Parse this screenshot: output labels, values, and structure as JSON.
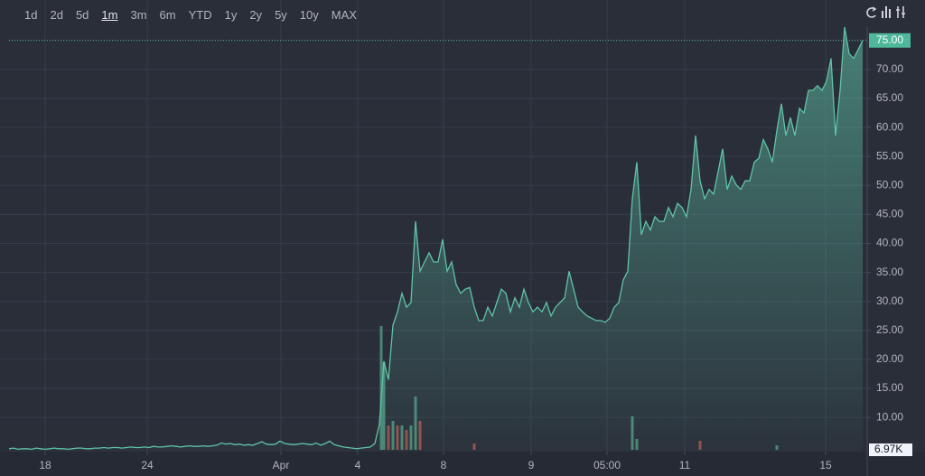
{
  "toolbar": {
    "ranges": [
      "1d",
      "2d",
      "5d",
      "1m",
      "3m",
      "6m",
      "YTD",
      "1y",
      "2y",
      "5y",
      "10y",
      "MAX"
    ],
    "selected": "1m"
  },
  "chart_data": {
    "type": "area",
    "color": "#5fc4a6",
    "grid": true,
    "values": [
      4.6,
      4.7,
      4.5,
      4.6,
      4.6,
      4.5,
      4.7,
      4.6,
      4.5,
      4.6,
      4.7,
      4.6,
      4.6,
      4.5,
      4.6,
      4.7,
      4.7,
      4.6,
      4.6,
      4.7,
      4.7,
      4.8,
      4.7,
      4.8,
      4.8,
      4.7,
      4.8,
      4.9,
      4.8,
      4.8,
      4.9,
      4.8,
      5.0,
      4.9,
      4.9,
      5.0,
      5.1,
      5.0,
      4.9,
      5.0,
      5.1,
      5.0,
      5.0,
      5.1,
      5.0,
      5.1,
      5.2,
      5.6,
      5.4,
      5.5,
      5.3,
      5.4,
      5.2,
      5.3,
      5.2,
      5.5,
      5.8,
      5.4,
      5.3,
      5.4,
      5.9,
      5.5,
      5.4,
      5.3,
      5.4,
      5.5,
      5.4,
      5.3,
      5.6,
      5.2,
      5.5,
      5.9,
      5.3,
      5.1,
      4.9,
      4.8,
      4.7,
      4.6,
      4.7,
      4.8,
      4.9,
      5.5,
      8.8,
      19.7,
      16.5,
      25.9,
      28.2,
      31.4,
      29.0,
      29.8,
      43.8,
      35.2,
      36.8,
      38.4,
      36.8,
      36.8,
      40.7,
      35.2,
      36.8,
      32.9,
      31.4,
      32.1,
      32.4,
      29.0,
      26.7,
      26.7,
      29.0,
      27.5,
      29.8,
      32.1,
      31.4,
      28.2,
      30.6,
      29.0,
      32.1,
      29.8,
      28.2,
      29.0,
      28.2,
      29.8,
      27.5,
      29.0,
      29.8,
      30.6,
      35.2,
      32.1,
      29.0,
      28.2,
      27.5,
      27.1,
      26.7,
      26.7,
      26.4,
      27.1,
      29.0,
      29.8,
      33.7,
      35.2,
      47.7,
      54.0,
      41.5,
      43.8,
      42.3,
      44.6,
      43.8,
      43.8,
      46.2,
      44.6,
      46.9,
      46.2,
      44.6,
      49.3,
      58.6,
      50.8,
      47.7,
      49.3,
      48.5,
      52.4,
      56.3,
      49.3,
      51.6,
      50.1,
      49.3,
      50.8,
      50.8,
      54.0,
      54.7,
      57.9,
      56.3,
      54.0,
      59.4,
      64.1,
      58.6,
      61.7,
      58.6,
      63.3,
      62.5,
      66.4,
      66.4,
      67.2,
      66.4,
      68.0,
      71.9,
      58.6,
      66.4,
      77.3,
      72.7,
      71.9,
      73.4,
      75.0
    ],
    "xlim": [
      0,
      190
    ],
    "xticks": [
      {
        "value": 8,
        "label": "18"
      },
      {
        "value": 30.6,
        "label": "24"
      },
      {
        "value": 60.2,
        "label": "Apr"
      },
      {
        "value": 77.2,
        "label": "4"
      },
      {
        "value": 96.2,
        "label": "8"
      },
      {
        "value": 115.6,
        "label": "9"
      },
      {
        "value": 132.4,
        "label": "05:00"
      },
      {
        "value": 149.6,
        "label": "11"
      },
      {
        "value": 180.8,
        "label": "15"
      }
    ],
    "ylim": [
      4.1,
      77.3
    ],
    "yticks": [
      {
        "value": 10,
        "label": "10.00"
      },
      {
        "value": 15,
        "label": "15.00"
      },
      {
        "value": 20,
        "label": "20.00"
      },
      {
        "value": 25,
        "label": "25.00"
      },
      {
        "value": 30,
        "label": "30.00"
      },
      {
        "value": 35,
        "label": "35.00"
      },
      {
        "value": 40,
        "label": "40.00"
      },
      {
        "value": 45,
        "label": "45.00"
      },
      {
        "value": 50,
        "label": "50.00"
      },
      {
        "value": 55,
        "label": "55.00"
      },
      {
        "value": 60,
        "label": "60.00"
      },
      {
        "value": 65,
        "label": "65.00"
      },
      {
        "value": 70,
        "label": "70.00"
      }
    ],
    "last_value": {
      "value": 75,
      "label": "75.00"
    },
    "volume": {
      "x": [
        82.4,
        83,
        84,
        85,
        86,
        87,
        88,
        89,
        90,
        91,
        103,
        138,
        139,
        153,
        170
      ],
      "values": [
        27.4,
        19.4,
        5.4,
        6.4,
        5.4,
        5.4,
        4.4,
        5.4,
        11.8,
        6.4,
        1.4,
        7.4,
        2.4,
        2,
        1
      ],
      "colors": [
        "#4e8f7c",
        "#4e8f7c",
        "#a0524f",
        "#4e8f7c",
        "#a0524f",
        "#4e8f7c",
        "#a0524f",
        "#4e8f7c",
        "#4e8f7c",
        "#a0524f",
        "#a0524f",
        "#4e8f7c",
        "#4e8f7c",
        "#a0524f",
        "#4e8f7c"
      ],
      "ylim": [
        0,
        30
      ],
      "label": "6.97K"
    }
  }
}
